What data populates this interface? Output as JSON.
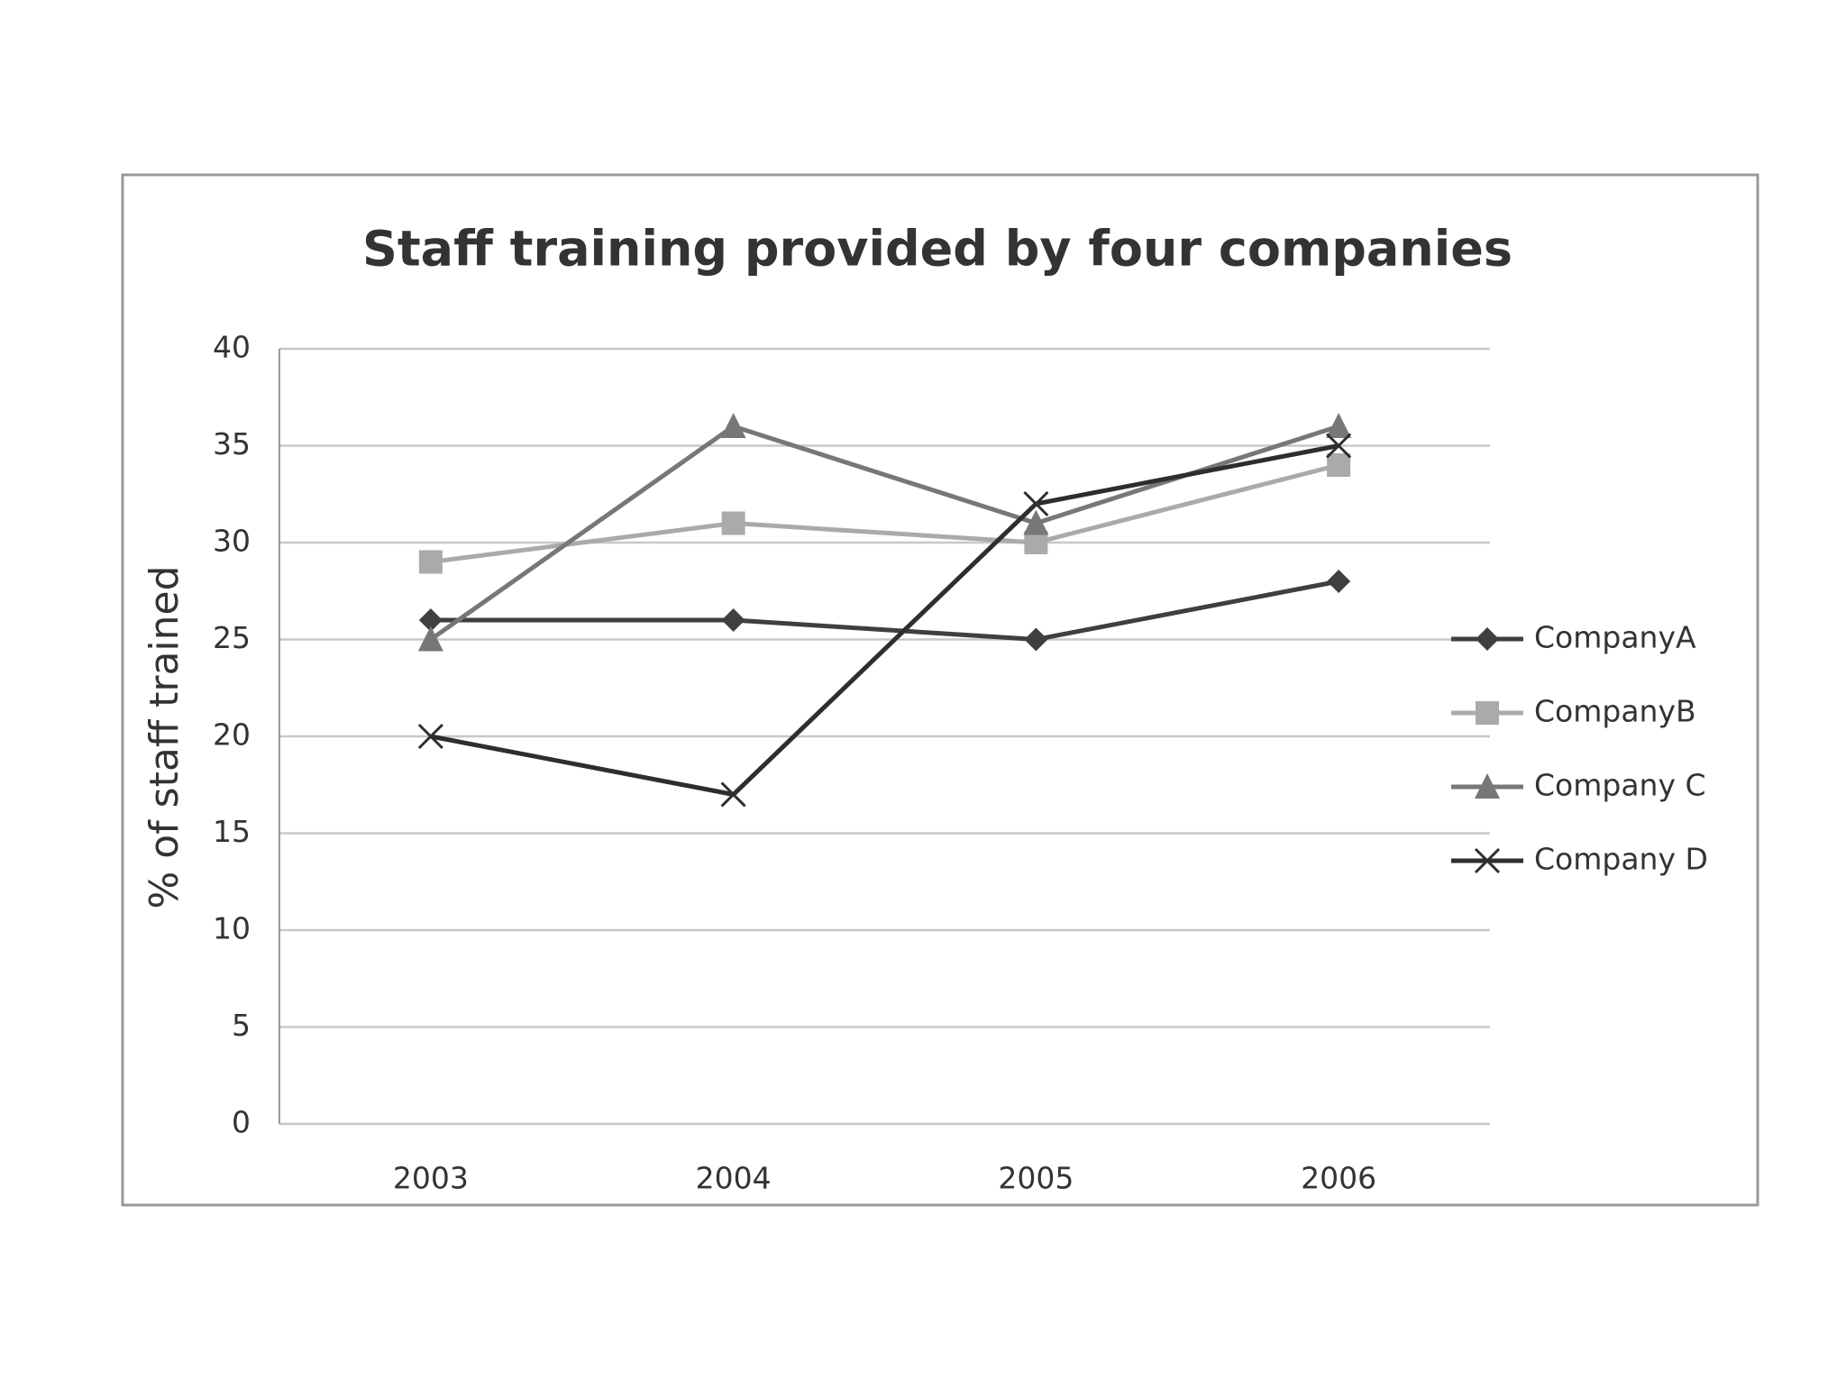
{
  "chart_data": {
    "type": "line",
    "title": "Staff training provided by four companies",
    "y_label": "% of staff trained",
    "categories": [
      "2003",
      "2004",
      "2005",
      "2006"
    ],
    "series": [
      {
        "name": "CompanyA",
        "color": "#3f3f3f",
        "marker": "diamond",
        "values": [
          26,
          26,
          25,
          28
        ]
      },
      {
        "name": "CompanyB",
        "color": "#aaaaaa",
        "marker": "square",
        "values": [
          29,
          31,
          30,
          34
        ]
      },
      {
        "name": "Company C",
        "color": "#777777",
        "marker": "triangle",
        "values": [
          25,
          36,
          31,
          36
        ]
      },
      {
        "name": "Company D",
        "color": "#2e2e2e",
        "marker": "x",
        "values": [
          20,
          17,
          32,
          35
        ]
      }
    ],
    "ylim": [
      0,
      40
    ],
    "yticks": [
      0,
      5,
      10,
      15,
      20,
      25,
      30,
      35,
      40
    ],
    "grid": true,
    "legend": "right"
  }
}
